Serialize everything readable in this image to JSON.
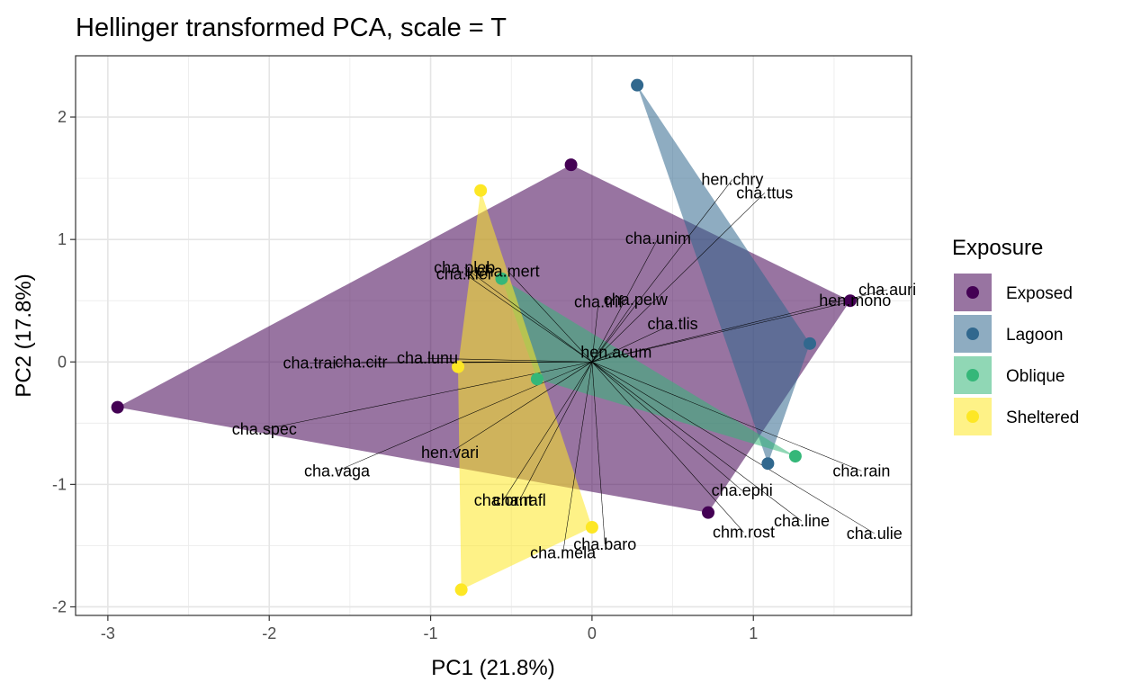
{
  "chart_data": {
    "type": "scatter",
    "title": "Hellinger transformed PCA, scale = T",
    "xlabel": "PC1 (21.8%)",
    "ylabel": "PC2 (17.8%)",
    "xlim": [
      -3.2,
      1.98
    ],
    "ylim": [
      -2.07,
      2.5
    ],
    "xticks": [
      -3,
      -2,
      -1,
      0,
      1
    ],
    "yticks": [
      -2,
      -1,
      0,
      1,
      2
    ],
    "xtick_labels": [
      "-3",
      "-2",
      "-1",
      "0",
      "1"
    ],
    "ytick_labels": [
      "-2",
      "-1",
      "0",
      "1",
      "2"
    ],
    "grid": true,
    "legend": {
      "title": "Exposure",
      "position": "right",
      "entries": [
        "Exposed",
        "Lagoon",
        "Oblique",
        "Sheltered"
      ]
    },
    "series": [
      {
        "name": "Exposed",
        "color": "#440154",
        "fill_opacity": 0.55,
        "points": [
          {
            "x": -2.94,
            "y": -0.37
          },
          {
            "x": -0.13,
            "y": 1.61
          },
          {
            "x": 1.6,
            "y": 0.5
          },
          {
            "x": 0.72,
            "y": -1.23
          }
        ],
        "hull": [
          [
            -2.94,
            -0.37
          ],
          [
            -0.13,
            1.61
          ],
          [
            1.6,
            0.5
          ],
          [
            0.72,
            -1.23
          ]
        ]
      },
      {
        "name": "Lagoon",
        "color": "#31688e",
        "fill_opacity": 0.55,
        "points": [
          {
            "x": 0.28,
            "y": 2.26
          },
          {
            "x": 1.35,
            "y": 0.15
          },
          {
            "x": 1.09,
            "y": -0.83
          }
        ],
        "hull": [
          [
            0.28,
            2.26
          ],
          [
            1.35,
            0.15
          ],
          [
            1.09,
            -0.83
          ]
        ]
      },
      {
        "name": "Oblique",
        "color": "#35b779",
        "fill_opacity": 0.55,
        "points": [
          {
            "x": 1.26,
            "y": -0.77
          },
          {
            "x": -0.56,
            "y": 0.68
          },
          {
            "x": -0.34,
            "y": -0.14
          }
        ],
        "hull": [
          [
            -0.56,
            0.68
          ],
          [
            1.26,
            -0.77
          ],
          [
            -0.34,
            -0.14
          ]
        ]
      },
      {
        "name": "Sheltered",
        "color": "#fde725",
        "fill_opacity": 0.55,
        "points": [
          {
            "x": -0.69,
            "y": 1.4
          },
          {
            "x": -0.83,
            "y": -0.04
          },
          {
            "x": -0.81,
            "y": -1.86
          },
          {
            "x": 0.0,
            "y": -1.35
          }
        ],
        "hull": [
          [
            -0.69,
            1.4
          ],
          [
            -0.83,
            -0.04
          ],
          [
            -0.81,
            -1.86
          ],
          [
            0.0,
            -1.35
          ]
        ]
      }
    ],
    "arrow_origin": [
      0.0,
      0.0
    ],
    "species": [
      {
        "label": "hen.chry",
        "x": 0.87,
        "y": 1.49
      },
      {
        "label": "cha.ttus",
        "x": 1.07,
        "y": 1.38
      },
      {
        "label": "cha.unim",
        "x": 0.41,
        "y": 1.01
      },
      {
        "label": "cha.auri",
        "x": 1.83,
        "y": 0.59
      },
      {
        "label": "hen.mono",
        "x": 1.63,
        "y": 0.5
      },
      {
        "label": "cha.pleb",
        "x": -0.79,
        "y": 0.77
      },
      {
        "label": "cha.kler",
        "x": -0.79,
        "y": 0.72
      },
      {
        "label": "cha.mert",
        "x": -0.52,
        "y": 0.74
      },
      {
        "label": "cha.trif",
        "x": 0.04,
        "y": 0.49
      },
      {
        "label": "cha.pelw",
        "x": 0.27,
        "y": 0.51
      },
      {
        "label": "cha.tlis",
        "x": 0.5,
        "y": 0.31
      },
      {
        "label": "hen.acum",
        "x": 0.15,
        "y": 0.08
      },
      {
        "label": "cha.lunu",
        "x": -1.02,
        "y": 0.03
      },
      {
        "label": "cha.citr",
        "x": -1.43,
        "y": 0.0
      },
      {
        "label": "cha.trai",
        "x": -1.75,
        "y": -0.01
      },
      {
        "label": "cha.spec",
        "x": -2.03,
        "y": -0.55
      },
      {
        "label": "hen.vari",
        "x": -0.88,
        "y": -0.74
      },
      {
        "label": "cha.vaga",
        "x": -1.58,
        "y": -0.89
      },
      {
        "label": "cha.rafl",
        "x": -0.45,
        "y": -1.13
      },
      {
        "label": "cha.ornt",
        "x": -0.55,
        "y": -1.13
      },
      {
        "label": "cha.baro",
        "x": 0.08,
        "y": -1.49
      },
      {
        "label": "cha.mela",
        "x": -0.18,
        "y": -1.56
      },
      {
        "label": "cha.ephi",
        "x": 0.93,
        "y": -1.05
      },
      {
        "label": "chm.rost",
        "x": 0.94,
        "y": -1.39
      },
      {
        "label": "cha.line",
        "x": 1.3,
        "y": -1.3
      },
      {
        "label": "cha.rain",
        "x": 1.67,
        "y": -0.89
      },
      {
        "label": "cha.ulie",
        "x": 1.75,
        "y": -1.4
      }
    ]
  }
}
